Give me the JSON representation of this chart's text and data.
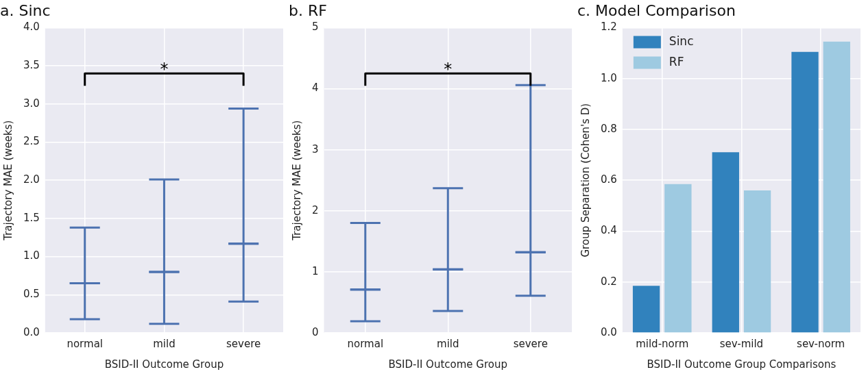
{
  "chart_data": [
    {
      "type": "box",
      "title": "a. Sinc",
      "xlabel": "BSID-II Outcome Group",
      "ylabel": "Trajectory MAE (weeks)",
      "categories": [
        "normal",
        "mild",
        "severe"
      ],
      "series": [
        {
          "color": "#4c72b0",
          "boxes": [
            {
              "low": 0.18,
              "q1": 0.65,
              "median": 0.65,
              "q3": 0.65,
              "high": 1.38
            },
            {
              "low": 0.12,
              "q1": 0.8,
              "median": 0.8,
              "q3": 0.8,
              "high": 2.01
            },
            {
              "low": 0.41,
              "q1": 1.17,
              "median": 1.17,
              "q3": 1.17,
              "high": 2.94
            }
          ]
        }
      ],
      "ylim": [
        0,
        4
      ],
      "yticks": [
        {
          "value": 0,
          "label": "0.0"
        },
        0.5,
        {
          "value": 1,
          "label": "1.0"
        },
        1.5,
        {
          "value": 2,
          "label": "2.0"
        },
        2.5,
        {
          "value": 3,
          "label": "3.0"
        },
        3.5,
        {
          "value": 4,
          "label": "4.0"
        }
      ],
      "grid": true,
      "annotations": [
        "*"
      ]
    },
    {
      "type": "box",
      "title": "b. RF",
      "xlabel": "BSID-II Outcome Group",
      "ylabel": "Trajectory MAE (weeks)",
      "categories": [
        "normal",
        "mild",
        "severe"
      ],
      "series": [
        {
          "color": "#4c72b0",
          "boxes": [
            {
              "low": 0.19,
              "q1": 0.71,
              "median": 0.71,
              "q3": 0.71,
              "high": 1.8
            },
            {
              "low": 0.36,
              "q1": 1.04,
              "median": 1.04,
              "q3": 1.04,
              "high": 2.37
            },
            {
              "low": 0.61,
              "q1": 1.32,
              "median": 1.32,
              "q3": 1.32,
              "high": 4.06
            }
          ]
        }
      ],
      "ylim": [
        0,
        5
      ],
      "yticks": [
        0,
        1,
        2,
        3,
        4,
        5
      ],
      "grid": true,
      "annotations": [
        "*"
      ]
    },
    {
      "type": "bar",
      "title": "c. Model Comparison",
      "xlabel": "BSID-II Outcome Group Comparisons",
      "ylabel": "Group Separation (Cohen's D)",
      "categories": [
        "mild-norm",
        "sev-mild",
        "sev-norm"
      ],
      "series": [
        {
          "name": "Sinc",
          "color": "#3182bd",
          "values": [
            0.185,
            0.71,
            1.105
          ]
        },
        {
          "name": "RF",
          "color": "#9ecae1",
          "values": [
            0.585,
            0.56,
            1.145
          ]
        }
      ],
      "ylim": [
        0,
        1.2
      ],
      "yticks": [
        {
          "value": 0,
          "label": "0.0"
        },
        0.2,
        0.4,
        0.6,
        0.8,
        {
          "value": 1,
          "label": "1.0"
        },
        1.2
      ],
      "grid": true,
      "legend": "top left"
    }
  ]
}
